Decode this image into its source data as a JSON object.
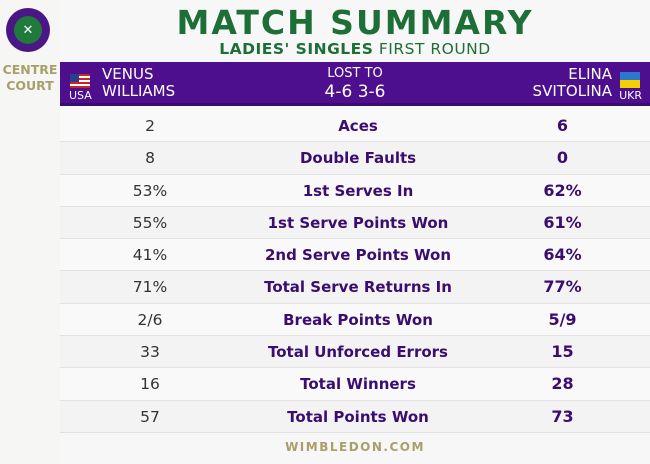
{
  "logo_text": "THE CHAMPIONSHIPS WIMBLEDON",
  "court": [
    "CENTRE",
    "COURT"
  ],
  "title": "MATCH SUMMARY",
  "subtitle_bold": "LADIES' SINGLES",
  "subtitle_regular": "FIRST ROUND",
  "player1": {
    "first": "VENUS",
    "last": "WILLIAMS",
    "country": "USA"
  },
  "result": {
    "label": "LOST TO",
    "score": "4-6 3-6"
  },
  "player2": {
    "first": "ELINA",
    "last": "SVITOLINA",
    "country": "UKR"
  },
  "stats": [
    {
      "p1": "2",
      "label": "Aces",
      "p2": "6"
    },
    {
      "p1": "8",
      "label": "Double Faults",
      "p2": "0"
    },
    {
      "p1": "53%",
      "label": "1st Serves In",
      "p2": "62%"
    },
    {
      "p1": "55%",
      "label": "1st Serve Points Won",
      "p2": "61%"
    },
    {
      "p1": "41%",
      "label": "2nd Serve Points Won",
      "p2": "64%"
    },
    {
      "p1": "71%",
      "label": "Total Serve Returns In",
      "p2": "77%"
    },
    {
      "p1": "2/6",
      "label": "Break Points Won",
      "p2": "5/9"
    },
    {
      "p1": "33",
      "label": "Total Unforced Errors",
      "p2": "15"
    },
    {
      "p1": "16",
      "label": "Total Winners",
      "p2": "28"
    },
    {
      "p1": "57",
      "label": "Total Points Won",
      "p2": "73"
    }
  ],
  "footer": "WIMBLEDON.COM",
  "colors": {
    "purple": "#4d0f8e",
    "green": "#1e6e38",
    "gold": "#a8a06a"
  }
}
